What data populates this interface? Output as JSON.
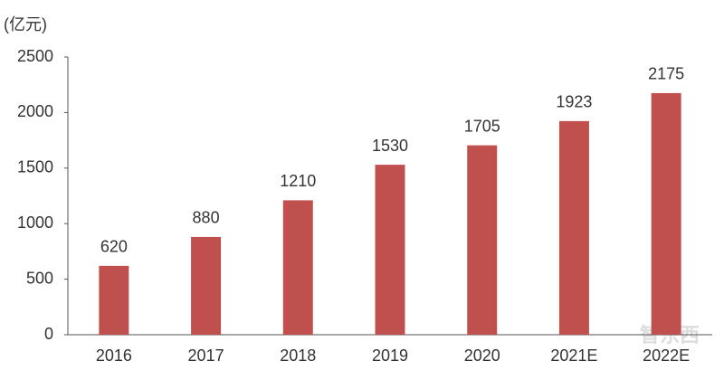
{
  "chart_data": {
    "type": "bar",
    "y_unit": "(亿元)",
    "categories": [
      "2016",
      "2017",
      "2018",
      "2019",
      "2020",
      "2021E",
      "2022E"
    ],
    "values": [
      620,
      880,
      1210,
      1530,
      1705,
      1923,
      2175
    ],
    "color": "#c0504d",
    "ylim": [
      0,
      2500
    ],
    "yticks": [
      0,
      500,
      1000,
      1500,
      2000,
      2500
    ],
    "data_labels": true,
    "watermark": "智东西"
  }
}
